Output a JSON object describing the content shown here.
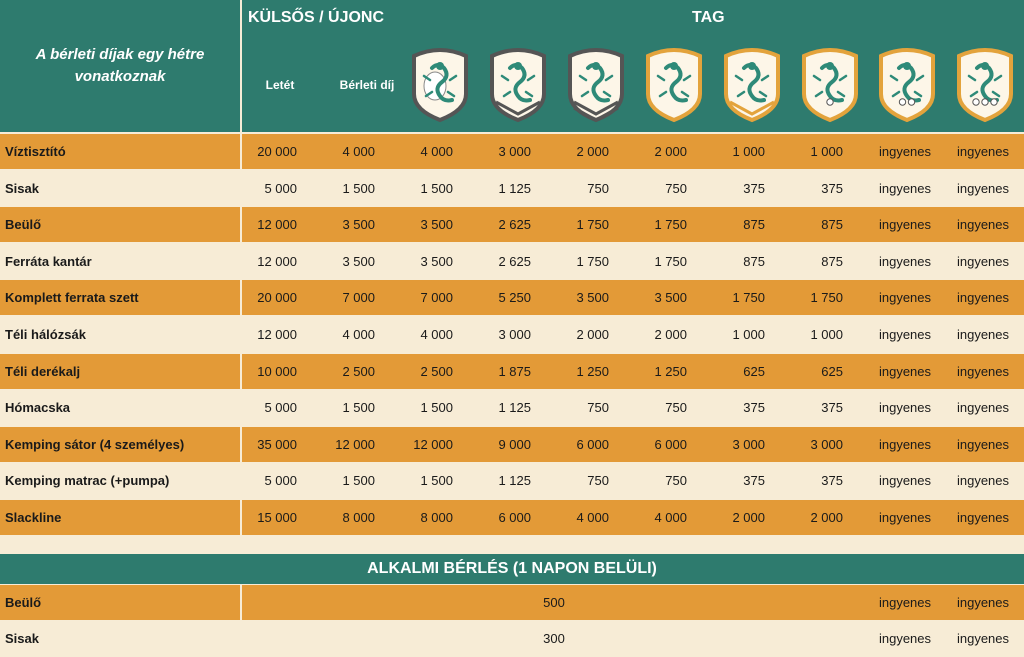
{
  "header": {
    "caption": "A bérleti díjak egy hétre vonatkoznak",
    "group_left": "KÜLSŐS / ÚJONC",
    "group_right": "TAG",
    "col_deposit": "Letét",
    "col_fee": "Bérleti díj"
  },
  "badges": [
    {
      "icon": "egg-lizard-shield-icon",
      "style": "gray"
    },
    {
      "icon": "lizard-shield-1-chevron-icon",
      "style": "gray"
    },
    {
      "icon": "lizard-shield-2-chevron-icon",
      "style": "gray"
    },
    {
      "icon": "lizard-shield-gold-1-icon",
      "style": "gold"
    },
    {
      "icon": "lizard-shield-gold-2-icon",
      "style": "gold"
    },
    {
      "icon": "lizard-shield-gold-1-dot-icon",
      "style": "gold"
    },
    {
      "icon": "lizard-shield-gold-2-dot-icon",
      "style": "gold"
    },
    {
      "icon": "lizard-shield-gold-3-dot-icon",
      "style": "gold"
    }
  ],
  "rows": [
    {
      "name": "Víztisztító",
      "values": [
        "20 000",
        "4 000",
        "4 000",
        "3 000",
        "2 000",
        "2 000",
        "1 000",
        "1 000",
        "ingyenes",
        "ingyenes"
      ]
    },
    {
      "name": "Sisak",
      "values": [
        "5 000",
        "1 500",
        "1 500",
        "1 125",
        "750",
        "750",
        "375",
        "375",
        "ingyenes",
        "ingyenes"
      ]
    },
    {
      "name": "Beülő",
      "values": [
        "12 000",
        "3 500",
        "3 500",
        "2 625",
        "1 750",
        "1 750",
        "875",
        "875",
        "ingyenes",
        "ingyenes"
      ]
    },
    {
      "name": "Ferráta kantár",
      "values": [
        "12 000",
        "3 500",
        "3 500",
        "2 625",
        "1 750",
        "1 750",
        "875",
        "875",
        "ingyenes",
        "ingyenes"
      ]
    },
    {
      "name": "Komplett ferrata szett",
      "values": [
        "20 000",
        "7 000",
        "7 000",
        "5 250",
        "3 500",
        "3 500",
        "1 750",
        "1 750",
        "ingyenes",
        "ingyenes"
      ]
    },
    {
      "name": "Téli hálózsák",
      "values": [
        "12 000",
        "4 000",
        "4 000",
        "3 000",
        "2 000",
        "2 000",
        "1 000",
        "1 000",
        "ingyenes",
        "ingyenes"
      ]
    },
    {
      "name": "Téli derékalj",
      "values": [
        "10 000",
        "2 500",
        "2 500",
        "1 875",
        "1 250",
        "1 250",
        "625",
        "625",
        "ingyenes",
        "ingyenes"
      ]
    },
    {
      "name": "Hómacska",
      "values": [
        "5 000",
        "1 500",
        "1 500",
        "1 125",
        "750",
        "750",
        "375",
        "375",
        "ingyenes",
        "ingyenes"
      ]
    },
    {
      "name": "Kemping sátor (4 személyes)",
      "values": [
        "35 000",
        "12 000",
        "12 000",
        "9 000",
        "6 000",
        "6 000",
        "3 000",
        "3 000",
        "ingyenes",
        "ingyenes"
      ]
    },
    {
      "name": "Kemping matrac (+pumpa)",
      "values": [
        "5 000",
        "1 500",
        "1 500",
        "1 125",
        "750",
        "750",
        "375",
        "375",
        "ingyenes",
        "ingyenes"
      ]
    },
    {
      "name": "Slackline",
      "values": [
        "15 000",
        "8 000",
        "8 000",
        "6 000",
        "4 000",
        "4 000",
        "2 000",
        "2 000",
        "ingyenes",
        "ingyenes"
      ]
    }
  ],
  "occasional": {
    "title": "ALKALMI BÉRLÉS (1 NAPON BELÜLI)",
    "rows": [
      {
        "name": "Beülő",
        "price": "500",
        "free1": "ingyenes",
        "free2": "ingyenes"
      },
      {
        "name": "Sisak",
        "price": "300",
        "free1": "ingyenes",
        "free2": "ingyenes"
      }
    ]
  },
  "colors": {
    "teal": "#2e7b6e",
    "gold": "#e39a37",
    "cream": "#f7ecd6",
    "lizard": "#2e8a78",
    "badge_gold": "#e3a33c",
    "badge_gray": "#555555"
  }
}
